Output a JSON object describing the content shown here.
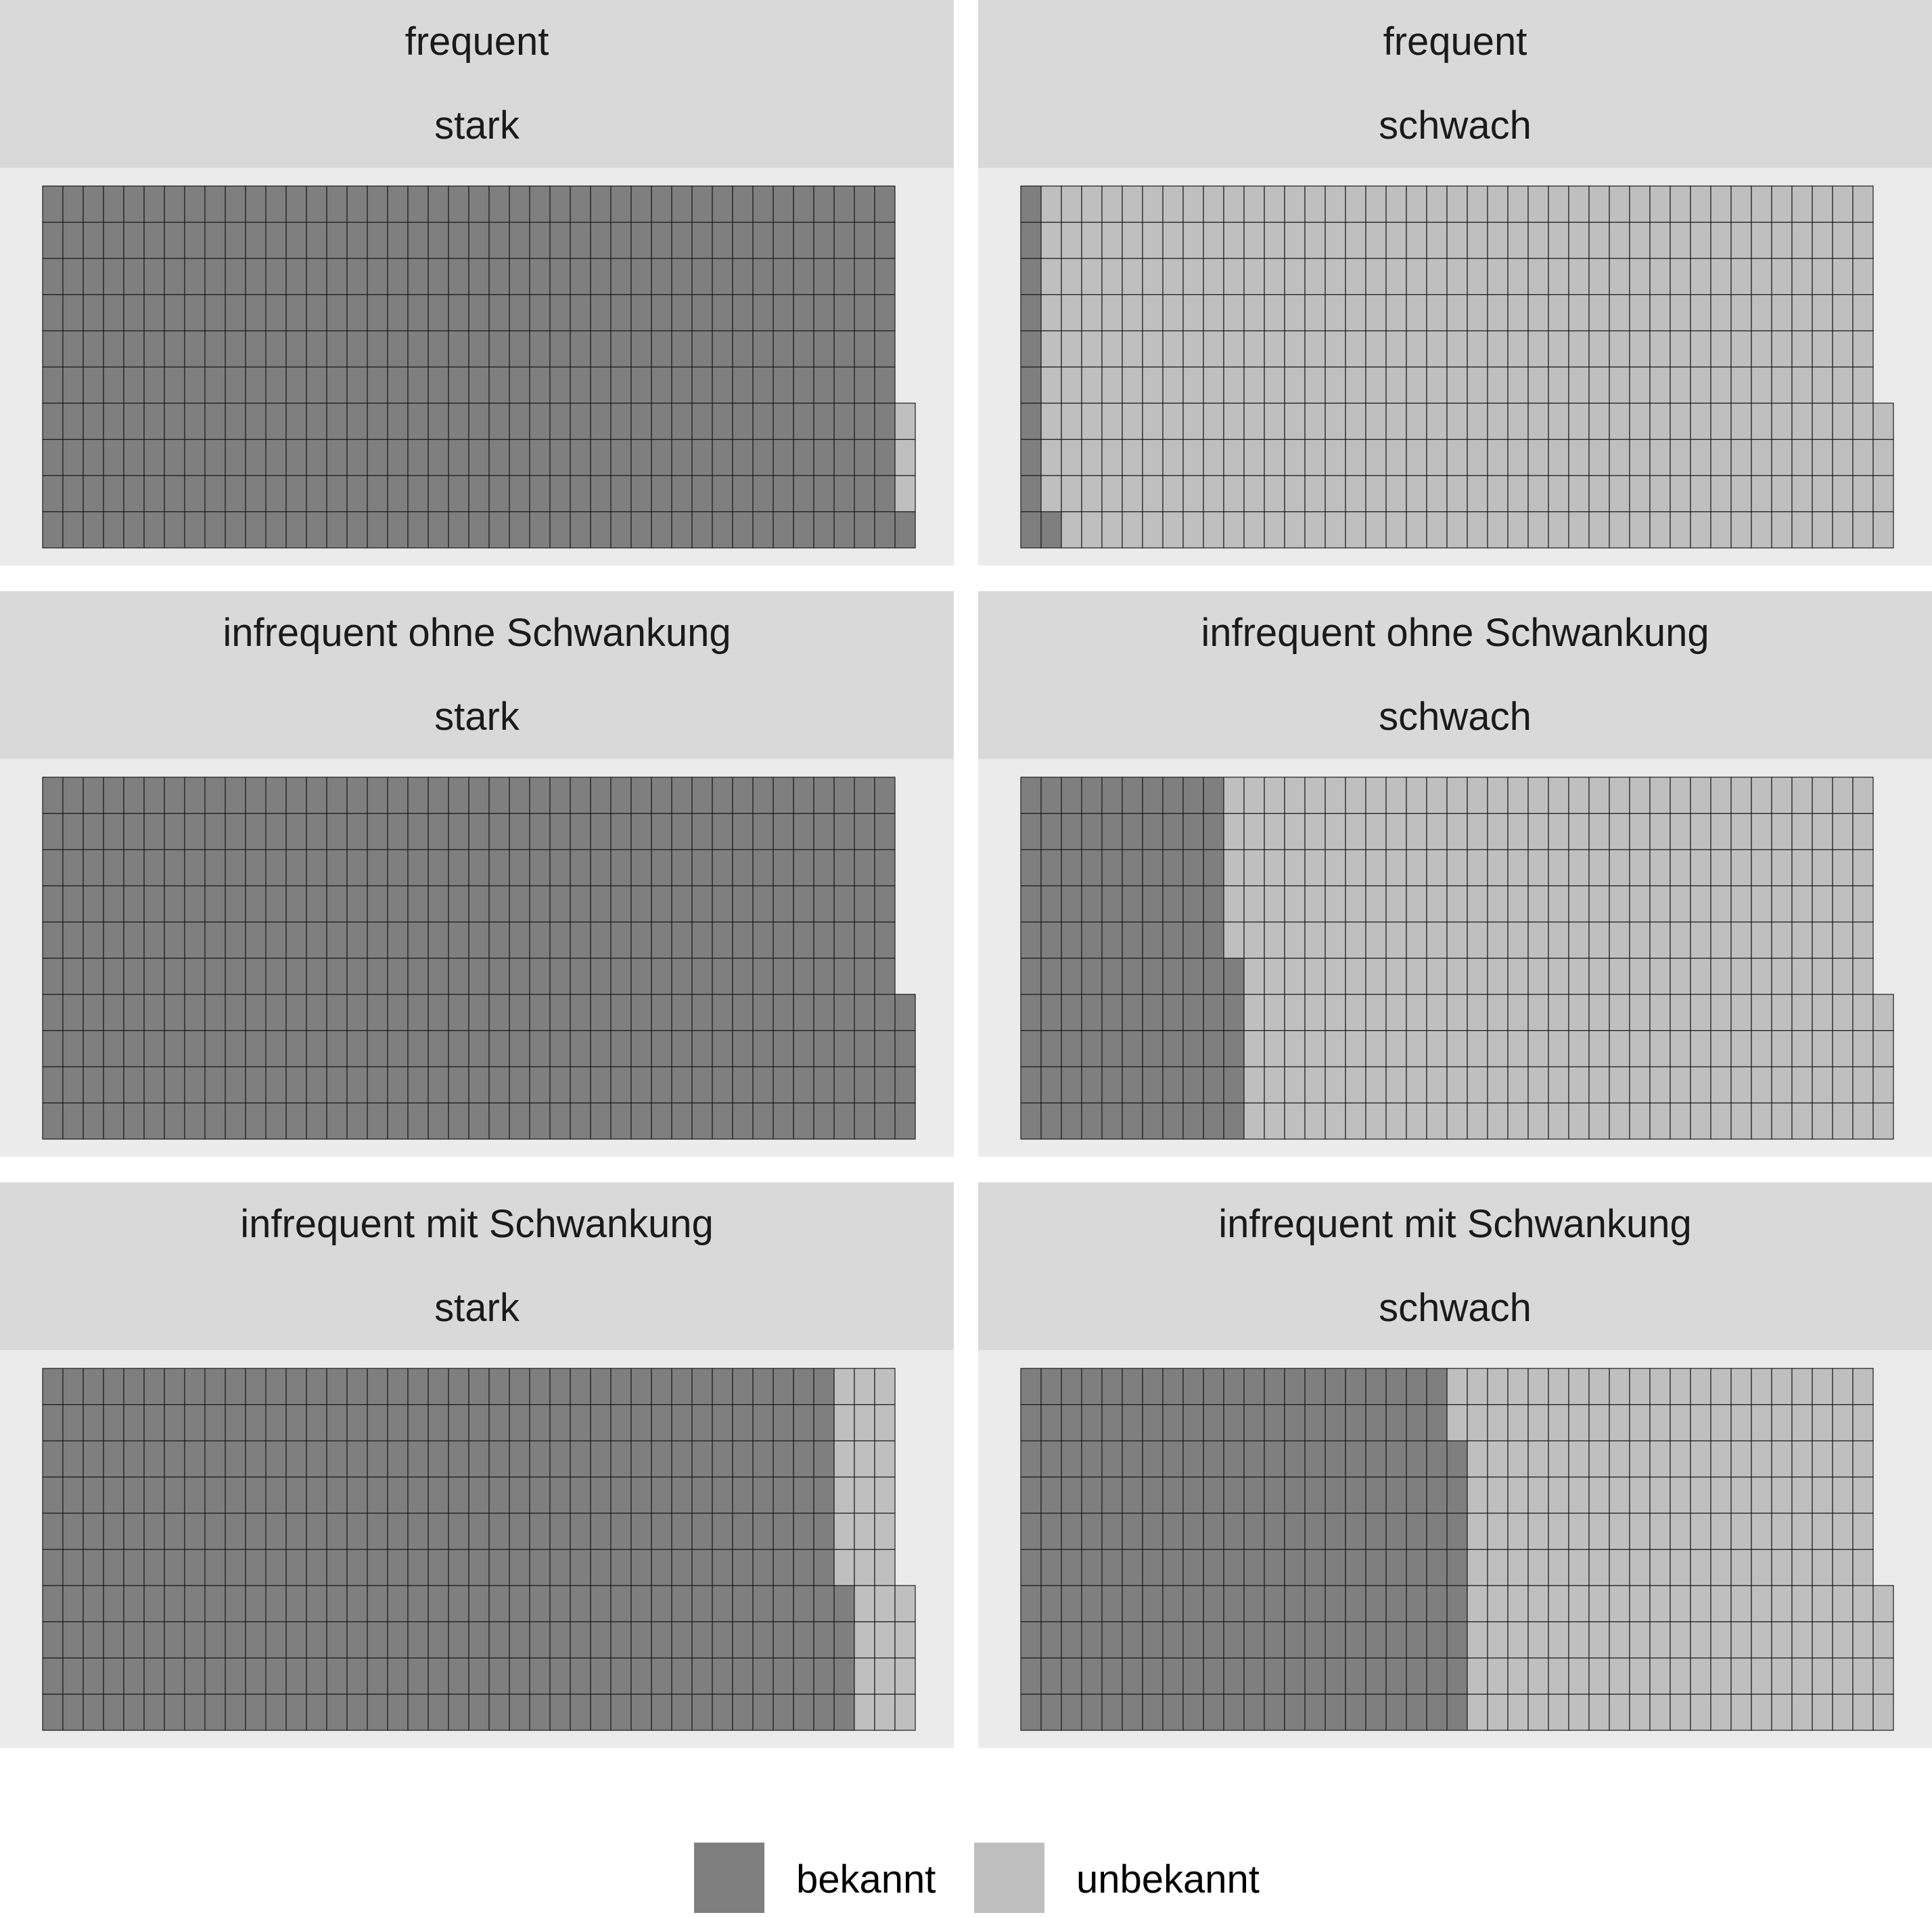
{
  "chart_data": {
    "type": "waffle",
    "unit": "1 square = 1 item",
    "grid": {
      "rows": 10,
      "columns_in_full_block": 42
    },
    "legend": {
      "placement": "bottom",
      "entries": [
        {
          "label": "bekannt",
          "color": "#7f7f7f"
        },
        {
          "label": "unbekannt",
          "color": "#bfbfbf"
        }
      ]
    },
    "cell_border_color": "#1a1a1a",
    "panels": [
      {
        "row_label": "frequent",
        "col_label": "stark",
        "total": 424,
        "bekannt": 421,
        "unbekannt": 3
      },
      {
        "row_label": "frequent",
        "col_label": "schwach",
        "total": 424,
        "bekannt": 11,
        "unbekannt": 413
      },
      {
        "row_label": "infrequent ohne Schwankung",
        "col_label": "stark",
        "total": 424,
        "bekannt": 424,
        "unbekannt": 0
      },
      {
        "row_label": "infrequent ohne Schwankung",
        "col_label": "schwach",
        "total": 424,
        "bekannt": 105,
        "unbekannt": 319
      },
      {
        "row_label": "infrequent mit Schwankung",
        "col_label": "stark",
        "total": 424,
        "bekannt": 394,
        "unbekannt": 30
      },
      {
        "row_label": "infrequent mit Schwankung",
        "col_label": "schwach",
        "total": 424,
        "bekannt": 218,
        "unbekannt": 206
      }
    ]
  }
}
